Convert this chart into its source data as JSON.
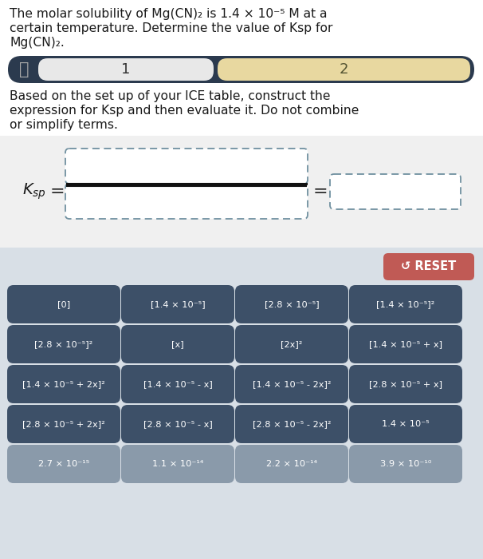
{
  "title_line1": "The molar solubility of Mg(CN)₂ is 1.4 × 10⁻⁵ M at a",
  "title_line2": "certain temperature. Determine the value of Ksp for",
  "title_line3": "Mg(CN)₂.",
  "nav_label1": "1",
  "nav_label2": "2",
  "instruction_line1": "Based on the set up of your ICE table, construct the",
  "instruction_line2": "expression for Ksp and then evaluate it. Do not combine",
  "instruction_line3": "or simplify terms.",
  "nav_bg": "#2b3a4e",
  "nav_tab1_color": "#e8e8e8",
  "nav_tab2_color": "#e8d8a0",
  "button_color": "#3d5068",
  "button_text_color": "#ffffff",
  "reset_color": "#c05a55",
  "reset_text": "↺ RESET",
  "last_row_color": "#8a9aaa",
  "eq_bg": "#f0f0f0",
  "btn_area_bg": "#d8dfe6",
  "buttons": [
    [
      "[0]",
      "[1.4 × 10⁻⁵]",
      "[2.8 × 10⁻⁵]",
      "[1.4 × 10⁻⁵]²"
    ],
    [
      "[2.8 × 10⁻⁵]²",
      "[x]",
      "[2x]²",
      "[1.4 × 10⁻⁵ + x]"
    ],
    [
      "[1.4 × 10⁻⁵ + 2x]²",
      "[1.4 × 10⁻⁵ - x]",
      "[1.4 × 10⁻⁵ - 2x]²",
      "[2.8 × 10⁻⁵ + x]"
    ],
    [
      "[2.8 × 10⁻⁵ + 2x]²",
      "[2.8 × 10⁻⁵ - x]",
      "[2.8 × 10⁻⁵ - 2x]²",
      "1.4 × 10⁻⁵"
    ],
    [
      "2.7 × 10⁻¹⁵",
      "1.1 × 10⁻¹⁴",
      "2.2 × 10⁻¹⁴",
      "3.9 × 10⁻¹⁰"
    ]
  ]
}
